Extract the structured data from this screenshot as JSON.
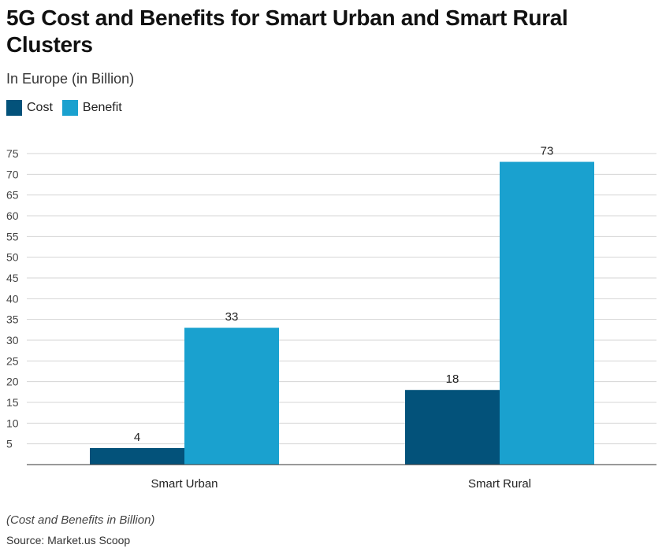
{
  "chart_data": {
    "type": "bar",
    "title": "5G Cost and Benefits for Smart Urban and Smart Rural Clusters",
    "subtitle": "In Europe (in Billion)",
    "categories": [
      "Smart Urban",
      "Smart Rural"
    ],
    "series": [
      {
        "name": "Cost",
        "values": [
          4,
          18
        ],
        "color": "#03527a"
      },
      {
        "name": "Benefit",
        "values": [
          33,
          73
        ],
        "color": "#1aa1cf"
      }
    ],
    "yticks": [
      5,
      10,
      15,
      20,
      25,
      30,
      35,
      40,
      45,
      50,
      55,
      60,
      65,
      70,
      75
    ],
    "ylim": [
      0,
      75
    ],
    "grid": true,
    "legend": "top-left",
    "note": "(Cost and Benefits in Billion)",
    "source": "Source: Market.us Scoop"
  }
}
